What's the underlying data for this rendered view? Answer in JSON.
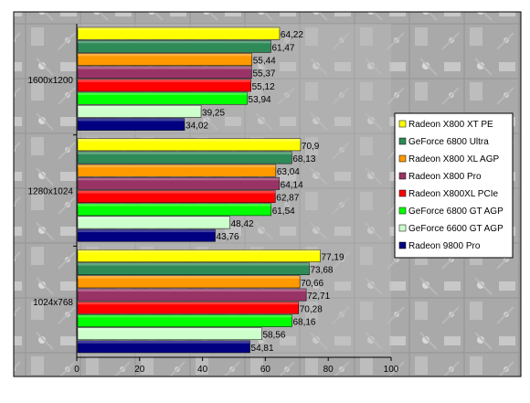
{
  "chart_data": {
    "type": "bar",
    "orientation": "horizontal",
    "categories": [
      "1600x1200",
      "1280x1024",
      "1024x768"
    ],
    "series": [
      {
        "name": "Radeon X800 XT PE",
        "color": "#ffff00",
        "values": [
          64.22,
          70.9,
          77.19
        ],
        "labels": [
          "64,22",
          "70,9",
          "77,19"
        ]
      },
      {
        "name": "GeForce 6800 Ultra",
        "color": "#2e8b57",
        "values": [
          61.47,
          68.13,
          73.68
        ],
        "labels": [
          "61,47",
          "68,13",
          "73,68"
        ]
      },
      {
        "name": "Radeon X800 XL AGP",
        "color": "#ff9900",
        "values": [
          55.44,
          63.04,
          70.66
        ],
        "labels": [
          "55,44",
          "63,04",
          "70,66"
        ]
      },
      {
        "name": "Radeon X800 Pro",
        "color": "#993366",
        "values": [
          55.37,
          64.14,
          72.71
        ],
        "labels": [
          "55,37",
          "64,14",
          "72,71"
        ]
      },
      {
        "name": "Radeon X800XL PCIe",
        "color": "#ff0000",
        "values": [
          55.12,
          62.87,
          70.28
        ],
        "labels": [
          "55,12",
          "62,87",
          "70,28"
        ]
      },
      {
        "name": "GeForce 6800 GT AGP",
        "color": "#00ff00",
        "values": [
          53.94,
          61.54,
          68.16
        ],
        "labels": [
          "53,94",
          "61,54",
          "68,16"
        ]
      },
      {
        "name": "GeForce 6600 GT AGP",
        "color": "#ccffcc",
        "values": [
          39.25,
          48.42,
          58.56
        ],
        "labels": [
          "39,25",
          "48,42",
          "58,56"
        ]
      },
      {
        "name": "Radeon 9800 Pro",
        "color": "#000080",
        "values": [
          34.02,
          43.76,
          54.81
        ],
        "labels": [
          "34,02",
          "43,76",
          "54,81"
        ]
      }
    ],
    "xlim": [
      0,
      100
    ],
    "xticks": [
      "0",
      "20",
      "40",
      "60",
      "80",
      "100"
    ],
    "legend_position": "right",
    "grid": false
  }
}
